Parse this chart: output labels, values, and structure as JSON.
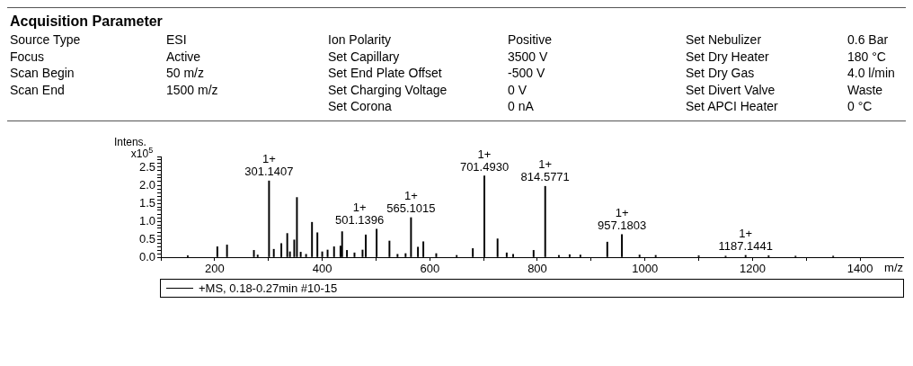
{
  "chart_data": [
    {
      "type": "other",
      "title": "Acquisition Parameter",
      "annotations": [
        "Source Type",
        "ESI",
        "Ion Polarity",
        "Positive",
        "Set Nebulizer",
        "0.6 Bar",
        "Focus",
        "Active",
        "Set Capillary",
        "3500 V",
        "Set Dry Heater",
        "180 °C",
        "Scan Begin",
        "50 m/z",
        "Set End Plate Offset",
        "-500 V",
        "Set Dry Gas",
        "4.0 l/min",
        "Scan End",
        "1500 m/z",
        "Set Charging Voltage",
        "0 V",
        "Set Divert Valve",
        "Waste",
        "Set Corona",
        "0 nA",
        "Set APCI Heater",
        "0 °C"
      ]
    },
    {
      "type": "bar",
      "xlabel": "m/z",
      "ylabel": "Intens.\nx10$^{5}$",
      "legend": "bottom left",
      "grid": false,
      "x": [
        150,
        205,
        223,
        273,
        280,
        301.1407,
        310,
        324,
        335,
        340,
        348,
        353,
        360,
        370,
        381,
        391,
        400,
        410,
        422,
        434,
        437,
        446,
        460,
        475,
        481,
        501.1396,
        525,
        540,
        555,
        565.1015,
        578,
        588,
        612,
        650,
        680,
        701.493,
        726,
        743,
        755,
        793,
        814.5771,
        840,
        860,
        880,
        930,
        957.1803,
        990,
        1020,
        1100,
        1150,
        1187.1441,
        1230,
        1280,
        1350
      ],
      "series": [
        {
          "name": "+MS, 0.18-0.27min #10-15",
          "color": "#000000",
          "values": [
            0.04,
            0.29,
            0.34,
            0.19,
            0.06,
            2.12,
            0.22,
            0.38,
            0.66,
            0.15,
            0.48,
            1.66,
            0.14,
            0.08,
            0.97,
            0.68,
            0.15,
            0.2,
            0.29,
            0.31,
            0.71,
            0.19,
            0.12,
            0.2,
            0.62,
            0.78,
            0.45,
            0.08,
            0.1,
            1.1,
            0.28,
            0.43,
            0.1,
            0.05,
            0.24,
            2.26,
            0.51,
            0.12,
            0.08,
            0.19,
            1.97,
            0.05,
            0.07,
            0.06,
            0.42,
            0.63,
            0.06,
            0.05,
            0.04,
            0.03,
            0.05,
            0.04,
            0.03,
            0.03
          ]
        }
      ],
      "xlim": [
        100,
        1480
      ],
      "xticks": [
        {
          "value": 100,
          "label": null
        },
        200,
        {
          "value": 300,
          "label": null
        },
        400,
        {
          "value": 500,
          "label": null
        },
        600,
        {
          "value": 700,
          "label": null
        },
        800,
        {
          "value": 900,
          "label": null
        },
        1000,
        {
          "value": 1100,
          "label": null
        },
        1200,
        {
          "value": 1300,
          "label": null
        },
        1400
      ],
      "ylim": [
        0,
        2.8
      ],
      "yticks": [
        {
          "value": 0,
          "label": "0.0"
        },
        {
          "value": 0.1,
          "label": null
        },
        {
          "value": 0.2,
          "label": null
        },
        {
          "value": 0.3,
          "label": null
        },
        {
          "value": 0.4,
          "label": null
        },
        {
          "value": 0.5,
          "label": "0.5"
        },
        {
          "value": 0.6,
          "label": null
        },
        {
          "value": 0.7,
          "label": null
        },
        {
          "value": 0.8,
          "label": null
        },
        {
          "value": 0.9,
          "label": null
        },
        {
          "value": 1,
          "label": "1.0"
        },
        {
          "value": 1.1,
          "label": null
        },
        {
          "value": 1.2,
          "label": null
        },
        {
          "value": 1.3,
          "label": null
        },
        {
          "value": 1.4,
          "label": null
        },
        {
          "value": 1.5,
          "label": "1.5"
        },
        {
          "value": 1.6,
          "label": null
        },
        {
          "value": 1.7,
          "label": null
        },
        {
          "value": 1.8,
          "label": null
        },
        {
          "value": 1.9,
          "label": null
        },
        {
          "value": 2,
          "label": "2.0"
        },
        {
          "value": 2.1,
          "label": null
        },
        {
          "value": 2.2,
          "label": null
        },
        {
          "value": 2.3,
          "label": null
        },
        {
          "value": 2.4,
          "label": null
        },
        {
          "value": 2.5,
          "label": "2.5"
        },
        {
          "value": 2.6,
          "label": null
        },
        {
          "value": 2.7,
          "label": null
        },
        {
          "value": 2.8,
          "label": null
        }
      ],
      "annotations": [
        {
          "text": "1+\n301.1407",
          "x": 301.1407,
          "y": 2.12
        },
        {
          "text": "1+\n501.1396",
          "x": 501.1396,
          "y": 0.78
        },
        {
          "text": "1+\n565.1015",
          "x": 565.1015,
          "y": 1.1
        },
        {
          "text": "1+\n701.4930",
          "x": 701.493,
          "y": 2.26
        },
        {
          "text": "1+\n814.5771",
          "x": 814.5771,
          "y": 1.97
        },
        {
          "text": "1+\n957.1803",
          "x": 957.1803,
          "y": 0.63
        },
        {
          "text": "1+\n1187.1441",
          "x": 1187.1441,
          "y": 0.05
        }
      ]
    }
  ]
}
